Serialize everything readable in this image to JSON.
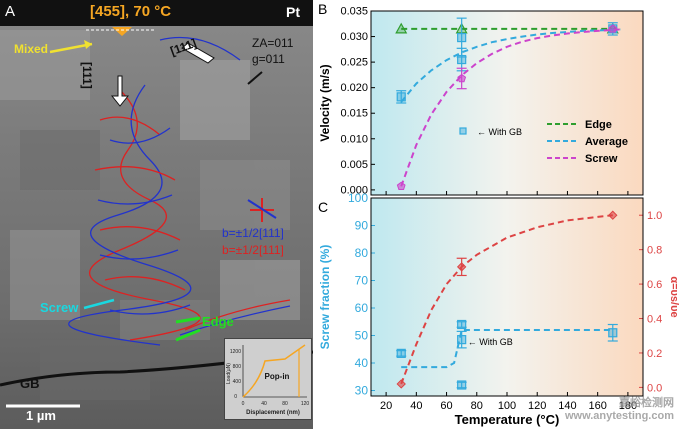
{
  "panel_a": {
    "label": "A",
    "header_text": "[455], 70 °C",
    "material": "Pt",
    "mixed_label": "Mixed",
    "direction_label_1": "[111]",
    "direction_label_2": "[111]",
    "za_label": "ZA=011",
    "g_label": "g=011",
    "burgers_blue": "b=±1/2[111]",
    "burgers_red": "b=±1/2[111]",
    "screw_label": "Screw",
    "edge_label": "Edge",
    "gb_label": "GB",
    "scale_bar_label": "1 µm",
    "inset": {
      "ylabel": "Load(µN)",
      "xlabel": "Displacement (nm)",
      "yticks": [
        "0",
        "400",
        "800",
        "1200"
      ],
      "xticks": [
        "0",
        "40",
        "80",
        "120"
      ],
      "popin_label": "Pop-in"
    },
    "colors": {
      "header": "#f5a623",
      "mixed": "#f0e130",
      "screw": "#19d8e0",
      "edge": "#22dd22",
      "blue": "#2233cc",
      "red": "#dd2222"
    }
  },
  "chart_data": [
    {
      "panel_label": "B",
      "type": "scatter",
      "xlabel": "",
      "ylabel": "Velocity (m/s)",
      "xlim": [
        10,
        190
      ],
      "ylim": [
        -0.001,
        0.035
      ],
      "yticks": [
        "0.000",
        "0.005",
        "0.010",
        "0.015",
        "0.020",
        "0.025",
        "0.030",
        "0.035"
      ],
      "yvalues": [
        0.0,
        0.005,
        0.01,
        0.015,
        0.02,
        0.025,
        0.03,
        0.035
      ],
      "legend": [
        "Edge",
        "Average",
        "Screw"
      ],
      "annotation": "With GB",
      "series": [
        {
          "name": "Edge",
          "color": "#2e9e2e",
          "marker": "triangle",
          "x": [
            30,
            70,
            170
          ],
          "y": [
            0.0315,
            0.0315,
            0.0315
          ],
          "fit_x": [
            30,
            175
          ],
          "fit_y": [
            0.0315,
            0.0315
          ]
        },
        {
          "name": "Average",
          "color": "#33aadd",
          "marker": "square",
          "x": [
            30,
            70,
            70,
            170
          ],
          "y": [
            0.0182,
            0.0255,
            0.0298,
            0.0315
          ],
          "err": [
            0.0012,
            0.0022,
            0.0038,
            0.0012
          ],
          "fit_x": [
            30,
            40,
            50,
            60,
            70,
            80,
            90,
            100,
            110,
            120,
            130,
            140,
            150,
            160,
            170,
            175
          ],
          "fit_y": [
            0.0172,
            0.0208,
            0.0234,
            0.0254,
            0.0269,
            0.028,
            0.0289,
            0.0295,
            0.03,
            0.0304,
            0.0307,
            0.0309,
            0.0311,
            0.0312,
            0.0313,
            0.0314
          ]
        },
        {
          "name": "Screw",
          "color": "#cc44cc",
          "marker": "pentagon",
          "x": [
            30,
            70,
            170
          ],
          "y": [
            0.0007,
            0.0218,
            0.0315
          ],
          "err": [
            0,
            0.002,
            0
          ],
          "fit_x": [
            30,
            40,
            50,
            60,
            70,
            80,
            90,
            100,
            110,
            120,
            130,
            140,
            150,
            160,
            170,
            175
          ],
          "fit_y": [
            0.0007,
            0.0088,
            0.0148,
            0.0192,
            0.0224,
            0.0248,
            0.0266,
            0.028,
            0.029,
            0.0297,
            0.0302,
            0.0306,
            0.0309,
            0.0311,
            0.0313,
            0.0314
          ]
        }
      ]
    },
    {
      "panel_label": "C",
      "type": "scatter",
      "xlabel": "Temperature (°C)",
      "ylabel": "Screw fraction (%)",
      "y2label": "α=υs/υe",
      "xlim": [
        10,
        190
      ],
      "xticks": [
        20,
        40,
        60,
        80,
        100,
        120,
        140,
        160,
        180
      ],
      "ylim": [
        28,
        100
      ],
      "yticks": [
        30,
        40,
        50,
        60,
        70,
        80,
        90,
        100
      ],
      "y2lim": [
        -0.05,
        1.1
      ],
      "y2ticks": [
        "0.0",
        "0.2",
        "0.4",
        "0.6",
        "0.8",
        "1.0"
      ],
      "y2values": [
        0,
        0.2,
        0.4,
        0.6,
        0.8,
        1.0
      ],
      "annotation": "With GB",
      "series": [
        {
          "name": "Screw fraction",
          "color": "#33aadd",
          "marker": "square",
          "x": [
            30,
            70,
            70,
            70,
            170
          ],
          "y": [
            43.5,
            54,
            48.5,
            32,
            51
          ],
          "err": [
            1,
            1,
            3,
            1,
            3
          ],
          "fit_x": [
            30,
            40,
            60,
            65,
            70,
            170
          ],
          "fit_y": [
            38.5,
            38.5,
            38.5,
            40,
            52,
            52
          ]
        },
        {
          "name": "alpha",
          "color": "#dd4444",
          "marker": "diamond",
          "axis": "y2",
          "x": [
            30,
            70,
            170
          ],
          "y": [
            0.02,
            0.7,
            1.0
          ],
          "err": [
            0,
            0.05,
            0
          ],
          "fit_x": [
            30,
            40,
            50,
            60,
            70,
            80,
            100,
            120,
            140,
            160,
            170
          ],
          "fit_y": [
            0.02,
            0.25,
            0.45,
            0.6,
            0.7,
            0.77,
            0.87,
            0.93,
            0.97,
            0.99,
            1.0
          ]
        }
      ]
    }
  ],
  "watermark": {
    "line1": "嘉峪检测网",
    "line2": "www.anytesting.com"
  }
}
